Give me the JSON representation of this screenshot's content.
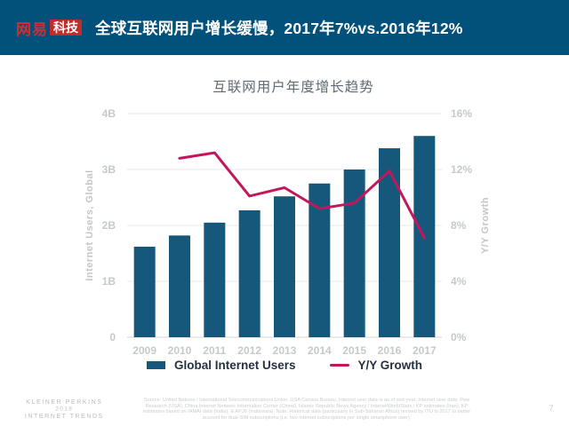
{
  "header": {
    "logo_primary": "网易",
    "logo_badge": "科技",
    "title": "全球互联网用户增长缓慢，2017年7%vs.2016年12%"
  },
  "chart_data": {
    "type": "bar",
    "title": "互联网用户年度增长趋势",
    "categories": [
      "2009",
      "2010",
      "2011",
      "2012",
      "2013",
      "2014",
      "2015",
      "2016",
      "2017"
    ],
    "series": [
      {
        "name": "Global Internet Users",
        "type": "bar",
        "axis": "left",
        "unit": "B",
        "values": [
          1.62,
          1.82,
          2.05,
          2.27,
          2.52,
          2.75,
          3.0,
          3.38,
          3.6
        ],
        "color": "#15587c"
      },
      {
        "name": "Y/Y Growth",
        "type": "line",
        "axis": "right",
        "unit": "%",
        "values": [
          null,
          12.8,
          13.2,
          10.1,
          10.7,
          9.2,
          9.6,
          11.9,
          7.1
        ],
        "color": "#c3175b"
      }
    ],
    "left_axis": {
      "label": "Internet Users, Global",
      "min": 0,
      "max": 4,
      "ticks": [
        "0",
        "1B",
        "2B",
        "3B",
        "4B"
      ]
    },
    "right_axis": {
      "label": "Y/Y Growth",
      "min": 0,
      "max": 16,
      "ticks": [
        "0%",
        "4%",
        "8%",
        "12%",
        "16%"
      ]
    },
    "grid": true,
    "legend_position": "bottom"
  },
  "legend": {
    "bars": "Global Internet Users",
    "line": "Y/Y Growth"
  },
  "footer": {
    "brand_lines": [
      "KLEINER PERKINS",
      "2018",
      "INTERNET TRENDS"
    ],
    "source": "Source: United Nations / International Telecommunications Union, USA Census Bureau. Internet user data is as of mid-year. Internet user data: Pew Research (USA), China Internet Network Information Center (China), Islamic Republic News Agency / InternetWorldStats / KP estimates (Iran), KP estimates based on IAMAI data (India), & APJII (Indonesia). Note: Historical data (particularly in Sub-Saharan Africa) revised by ITU in 2017 to better account for dual-SIM subscriptions (i.e. two Internet subscriptions per single smartphone user).",
    "page": "7"
  },
  "colors": {
    "header_bg": "#02517b",
    "bar": "#15587c",
    "line": "#c3175b",
    "logo_red": "#c32b2b",
    "grid": "#e8eaec",
    "baseline": "#d4d7d9",
    "tick_text": "#c5c9cc"
  }
}
